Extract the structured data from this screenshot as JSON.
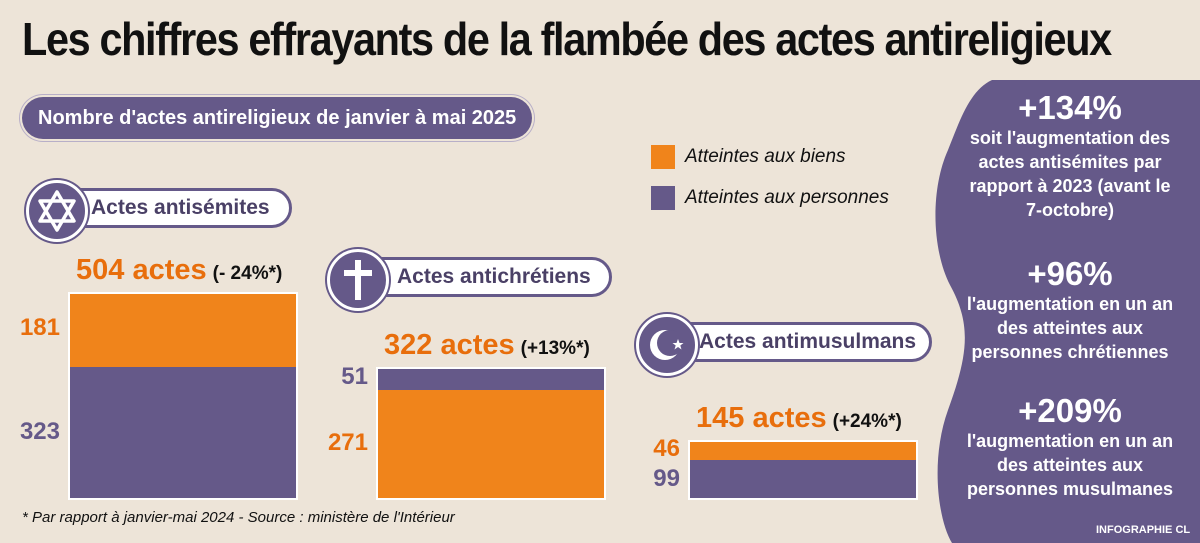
{
  "title": "Les chiffres effrayants de la flambée des actes antireligieux",
  "subtitle": "Nombre d'actes antireligieux de janvier à mai 2025",
  "legend": {
    "biens": "Atteintes aux biens",
    "personnes": "Atteintes aux personnes"
  },
  "colors": {
    "biens": "#f0841b",
    "personnes": "#655989",
    "background": "#ede4d8"
  },
  "chart_data": {
    "type": "bar",
    "stacked": true,
    "title": "Nombre d'actes antireligieux de janvier à mai 2025",
    "categories": [
      {
        "name": "Actes antisémites",
        "icon": "star-of-david-icon",
        "total_label": "504 actes",
        "change_label": "(- 24%*)",
        "biens": 181,
        "personnes": 323
      },
      {
        "name": "Actes antichrétiens",
        "icon": "cross-icon",
        "total_label": "322 actes",
        "change_label": "(+13%*)",
        "biens": 271,
        "personnes": 51
      },
      {
        "name": "Actes antimusulmans",
        "icon": "crescent-star-icon",
        "total_label": "145 actes",
        "change_label": "(+24%*)",
        "biens": 46,
        "personnes": 99
      }
    ],
    "series": [
      {
        "name": "Atteintes aux biens",
        "values": [
          181,
          271,
          46
        ]
      },
      {
        "name": "Atteintes aux personnes",
        "values": [
          323,
          51,
          99
        ]
      }
    ]
  },
  "stats": [
    {
      "value": "+134%",
      "lines": [
        "soit l'augmentation des",
        "actes antisémites par",
        "rapport à 2023 (avant le",
        "7-octobre)"
      ]
    },
    {
      "value": "+96%",
      "lines": [
        "l'augmentation en un an",
        "des atteintes aux",
        "personnes chrétiennes"
      ]
    },
    {
      "value": "+209%",
      "lines": [
        "l'augmentation en un an",
        "des atteintes aux",
        "personnes musulmanes"
      ]
    }
  ],
  "footnote": "* Par rapport à janvier-mai 2024  -  Source : ministère de l'Intérieur",
  "credit": "INFOGRAPHIE CL"
}
